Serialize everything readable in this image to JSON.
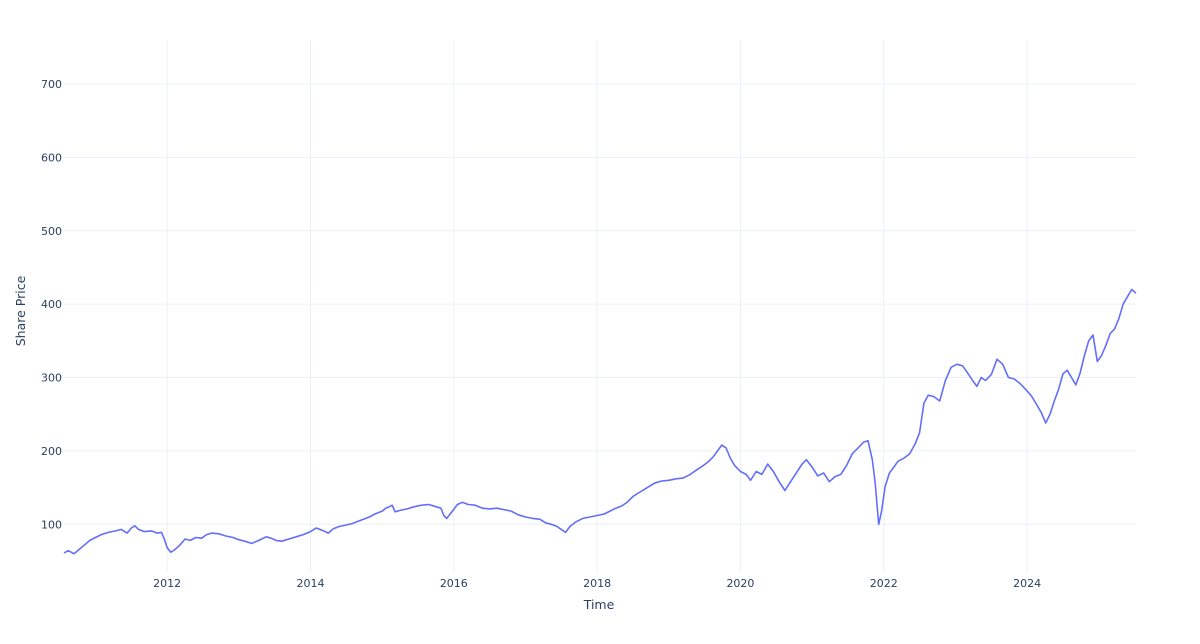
{
  "chart_data": {
    "type": "line",
    "title": "",
    "xlabel": "Time",
    "ylabel": "Share Price",
    "grid": true,
    "legend": "none",
    "xlim": [
      2010.56,
      2025.52
    ],
    "ylim": [
      35,
      760
    ],
    "x_ticks": [
      {
        "value": 2012,
        "label": "2012"
      },
      {
        "value": 2014,
        "label": "2014"
      },
      {
        "value": 2016,
        "label": "2016"
      },
      {
        "value": 2018,
        "label": "2018"
      },
      {
        "value": 2020,
        "label": "2020"
      },
      {
        "value": 2022,
        "label": "2022"
      },
      {
        "value": 2024,
        "label": "2024"
      }
    ],
    "y_ticks": [
      {
        "value": 100,
        "label": "100"
      },
      {
        "value": 200,
        "label": "200"
      },
      {
        "value": 300,
        "label": "300"
      },
      {
        "value": 400,
        "label": "400"
      },
      {
        "value": 500,
        "label": "500"
      },
      {
        "value": 600,
        "label": "600"
      },
      {
        "value": 700,
        "label": "700"
      }
    ],
    "series": [
      {
        "color": "#636efa",
        "points": [
          [
            2010.56,
            61
          ],
          [
            2010.62,
            64
          ],
          [
            2010.7,
            60
          ],
          [
            2010.8,
            68
          ],
          [
            2010.92,
            78
          ],
          [
            2011.0,
            82
          ],
          [
            2011.08,
            86
          ],
          [
            2011.18,
            89
          ],
          [
            2011.28,
            91
          ],
          [
            2011.36,
            93
          ],
          [
            2011.44,
            88
          ],
          [
            2011.5,
            95
          ],
          [
            2011.55,
            98
          ],
          [
            2011.6,
            93
          ],
          [
            2011.68,
            90
          ],
          [
            2011.78,
            91
          ],
          [
            2011.86,
            88
          ],
          [
            2011.92,
            89
          ],
          [
            2011.96,
            80
          ],
          [
            2012.0,
            68
          ],
          [
            2012.05,
            62
          ],
          [
            2012.1,
            65
          ],
          [
            2012.18,
            72
          ],
          [
            2012.25,
            80
          ],
          [
            2012.32,
            78
          ],
          [
            2012.4,
            82
          ],
          [
            2012.48,
            81
          ],
          [
            2012.55,
            86
          ],
          [
            2012.62,
            88
          ],
          [
            2012.72,
            87
          ],
          [
            2012.82,
            84
          ],
          [
            2012.92,
            82
          ],
          [
            2013.0,
            79
          ],
          [
            2013.08,
            77
          ],
          [
            2013.18,
            74
          ],
          [
            2013.28,
            78
          ],
          [
            2013.38,
            83
          ],
          [
            2013.45,
            81
          ],
          [
            2013.52,
            78
          ],
          [
            2013.6,
            77
          ],
          [
            2013.7,
            80
          ],
          [
            2013.8,
            83
          ],
          [
            2013.9,
            86
          ],
          [
            2014.0,
            90
          ],
          [
            2014.08,
            95
          ],
          [
            2014.16,
            92
          ],
          [
            2014.25,
            88
          ],
          [
            2014.32,
            94
          ],
          [
            2014.4,
            97
          ],
          [
            2014.5,
            99
          ],
          [
            2014.58,
            101
          ],
          [
            2014.66,
            104
          ],
          [
            2014.74,
            107
          ],
          [
            2014.82,
            110
          ],
          [
            2014.9,
            114
          ],
          [
            2015.0,
            118
          ],
          [
            2015.05,
            122
          ],
          [
            2015.1,
            124
          ],
          [
            2015.14,
            126
          ],
          [
            2015.18,
            117
          ],
          [
            2015.25,
            119
          ],
          [
            2015.35,
            121
          ],
          [
            2015.45,
            124
          ],
          [
            2015.55,
            126
          ],
          [
            2015.65,
            127
          ],
          [
            2015.75,
            124
          ],
          [
            2015.82,
            122
          ],
          [
            2015.86,
            112
          ],
          [
            2015.9,
            108
          ],
          [
            2015.98,
            118
          ],
          [
            2016.05,
            127
          ],
          [
            2016.12,
            130
          ],
          [
            2016.2,
            127
          ],
          [
            2016.3,
            126
          ],
          [
            2016.4,
            122
          ],
          [
            2016.5,
            121
          ],
          [
            2016.6,
            122
          ],
          [
            2016.7,
            120
          ],
          [
            2016.8,
            118
          ],
          [
            2016.9,
            113
          ],
          [
            2017.0,
            110
          ],
          [
            2017.1,
            108
          ],
          [
            2017.2,
            107
          ],
          [
            2017.28,
            102
          ],
          [
            2017.36,
            100
          ],
          [
            2017.44,
            97
          ],
          [
            2017.5,
            93
          ],
          [
            2017.56,
            89
          ],
          [
            2017.62,
            97
          ],
          [
            2017.7,
            103
          ],
          [
            2017.8,
            108
          ],
          [
            2017.9,
            110
          ],
          [
            2018.0,
            112
          ],
          [
            2018.1,
            114
          ],
          [
            2018.18,
            118
          ],
          [
            2018.26,
            122
          ],
          [
            2018.34,
            125
          ],
          [
            2018.42,
            130
          ],
          [
            2018.5,
            138
          ],
          [
            2018.6,
            144
          ],
          [
            2018.7,
            150
          ],
          [
            2018.8,
            156
          ],
          [
            2018.9,
            159
          ],
          [
            2019.0,
            160
          ],
          [
            2019.1,
            162
          ],
          [
            2019.2,
            163
          ],
          [
            2019.3,
            168
          ],
          [
            2019.4,
            175
          ],
          [
            2019.48,
            180
          ],
          [
            2019.56,
            186
          ],
          [
            2019.62,
            192
          ],
          [
            2019.68,
            200
          ],
          [
            2019.74,
            208
          ],
          [
            2019.8,
            204
          ],
          [
            2019.86,
            190
          ],
          [
            2019.92,
            180
          ],
          [
            2020.0,
            172
          ],
          [
            2020.08,
            168
          ],
          [
            2020.14,
            160
          ],
          [
            2020.22,
            172
          ],
          [
            2020.3,
            168
          ],
          [
            2020.38,
            182
          ],
          [
            2020.46,
            172
          ],
          [
            2020.54,
            158
          ],
          [
            2020.62,
            146
          ],
          [
            2020.7,
            158
          ],
          [
            2020.78,
            170
          ],
          [
            2020.86,
            182
          ],
          [
            2020.92,
            188
          ],
          [
            2021.0,
            178
          ],
          [
            2021.08,
            166
          ],
          [
            2021.16,
            170
          ],
          [
            2021.24,
            158
          ],
          [
            2021.32,
            165
          ],
          [
            2021.4,
            168
          ],
          [
            2021.48,
            180
          ],
          [
            2021.56,
            196
          ],
          [
            2021.64,
            204
          ],
          [
            2021.72,
            212
          ],
          [
            2021.78,
            214
          ],
          [
            2021.84,
            188
          ],
          [
            2021.88,
            156
          ],
          [
            2021.93,
            100
          ],
          [
            2021.97,
            118
          ],
          [
            2022.02,
            152
          ],
          [
            2022.08,
            170
          ],
          [
            2022.14,
            178
          ],
          [
            2022.2,
            186
          ],
          [
            2022.28,
            190
          ],
          [
            2022.36,
            196
          ],
          [
            2022.44,
            210
          ],
          [
            2022.5,
            225
          ],
          [
            2022.56,
            265
          ],
          [
            2022.62,
            276
          ],
          [
            2022.7,
            274
          ],
          [
            2022.78,
            268
          ],
          [
            2022.86,
            296
          ],
          [
            2022.94,
            314
          ],
          [
            2023.02,
            318
          ],
          [
            2023.1,
            316
          ],
          [
            2023.18,
            305
          ],
          [
            2023.24,
            296
          ],
          [
            2023.3,
            288
          ],
          [
            2023.36,
            300
          ],
          [
            2023.42,
            296
          ],
          [
            2023.5,
            304
          ],
          [
            2023.58,
            325
          ],
          [
            2023.66,
            318
          ],
          [
            2023.74,
            300
          ],
          [
            2023.82,
            298
          ],
          [
            2023.9,
            292
          ],
          [
            2023.98,
            284
          ],
          [
            2024.06,
            275
          ],
          [
            2024.14,
            262
          ],
          [
            2024.2,
            252
          ],
          [
            2024.26,
            238
          ],
          [
            2024.32,
            250
          ],
          [
            2024.38,
            268
          ],
          [
            2024.44,
            284
          ],
          [
            2024.5,
            305
          ],
          [
            2024.56,
            310
          ],
          [
            2024.62,
            300
          ],
          [
            2024.68,
            290
          ],
          [
            2024.74,
            306
          ],
          [
            2024.8,
            330
          ],
          [
            2024.86,
            350
          ],
          [
            2024.92,
            358
          ],
          [
            2024.98,
            322
          ],
          [
            2025.04,
            330
          ],
          [
            2025.1,
            344
          ],
          [
            2025.16,
            360
          ],
          [
            2025.22,
            366
          ],
          [
            2025.28,
            380
          ],
          [
            2025.34,
            400
          ],
          [
            2025.4,
            410
          ],
          [
            2025.46,
            420
          ],
          [
            2025.52,
            415
          ]
        ]
      }
    ]
  }
}
